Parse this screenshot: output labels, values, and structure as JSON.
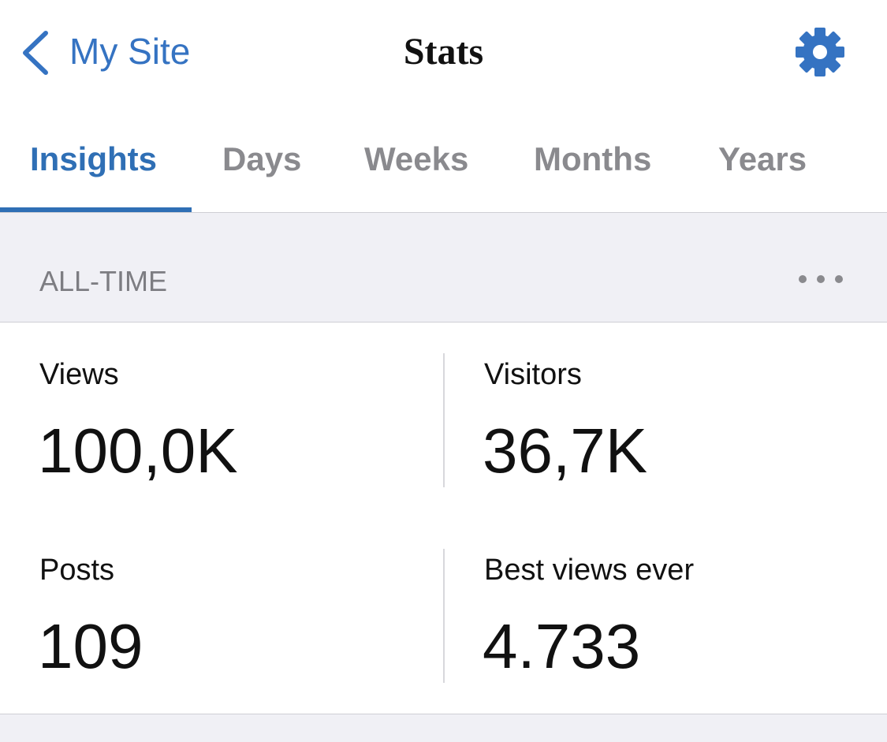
{
  "nav": {
    "back": "My Site",
    "title": "Stats"
  },
  "tabs": [
    "Insights",
    "Days",
    "Weeks",
    "Months",
    "Years"
  ],
  "section": {
    "title": "ALL-TIME"
  },
  "stats": [
    {
      "label": "Views",
      "value": "100,0K"
    },
    {
      "label": "Visitors",
      "value": "36,7K"
    },
    {
      "label": "Posts",
      "value": "109"
    },
    {
      "label": "Best views ever",
      "value": "4.733"
    }
  ]
}
